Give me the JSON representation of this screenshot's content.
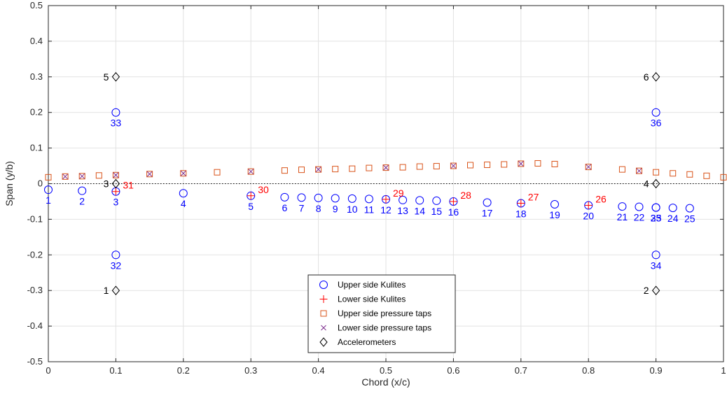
{
  "chart_data": {
    "type": "scatter",
    "xlabel": "Chord (x/c)",
    "ylabel": "Span (y/b)",
    "xlim": [
      0,
      1
    ],
    "ylim": [
      -0.5,
      0.5
    ],
    "xticks": [
      0,
      0.1,
      0.2,
      0.3,
      0.4,
      0.5,
      0.6,
      0.7,
      0.8,
      0.9,
      1
    ],
    "xtick_labels": [
      "0",
      "0.1",
      "0.2",
      "0.3",
      "0.4",
      "0.5",
      "0.6",
      "0.7",
      "0.8",
      "0.9",
      "1"
    ],
    "yticks": [
      -0.5,
      -0.4,
      -0.3,
      -0.2,
      -0.1,
      0,
      0.1,
      0.2,
      0.3,
      0.4,
      0.5
    ],
    "ytick_labels": [
      "-0.5",
      "-0.4",
      "-0.3",
      "-0.2",
      "-0.1",
      "0",
      "0.1",
      "0.2",
      "0.3",
      "0.4",
      "0.5"
    ],
    "grid": true,
    "zero_line": true,
    "legend_position": "bottom-center",
    "series": [
      {
        "name": "Upper side Kulites",
        "marker": "circle",
        "color": "#0000ff",
        "label_color": "#0000ff",
        "points": [
          {
            "x": 0.0,
            "y": -0.017,
            "label": "1"
          },
          {
            "x": 0.05,
            "y": -0.02,
            "label": "2"
          },
          {
            "x": 0.1,
            "y": -0.022,
            "label": "3"
          },
          {
            "x": 0.2,
            "y": -0.027,
            "label": "4"
          },
          {
            "x": 0.3,
            "y": -0.034,
            "label": "5"
          },
          {
            "x": 0.35,
            "y": -0.038,
            "label": "6"
          },
          {
            "x": 0.375,
            "y": -0.039,
            "label": "7"
          },
          {
            "x": 0.4,
            "y": -0.04,
            "label": "8"
          },
          {
            "x": 0.425,
            "y": -0.041,
            "label": "9"
          },
          {
            "x": 0.45,
            "y": -0.042,
            "label": "10"
          },
          {
            "x": 0.475,
            "y": -0.043,
            "label": "11"
          },
          {
            "x": 0.5,
            "y": -0.044,
            "label": "12"
          },
          {
            "x": 0.525,
            "y": -0.046,
            "label": "13"
          },
          {
            "x": 0.55,
            "y": -0.047,
            "label": "14"
          },
          {
            "x": 0.575,
            "y": -0.048,
            "label": "15"
          },
          {
            "x": 0.6,
            "y": -0.05,
            "label": "16"
          },
          {
            "x": 0.65,
            "y": -0.053,
            "label": "17"
          },
          {
            "x": 0.7,
            "y": -0.055,
            "label": "18"
          },
          {
            "x": 0.75,
            "y": -0.058,
            "label": "19"
          },
          {
            "x": 0.8,
            "y": -0.061,
            "label": "20"
          },
          {
            "x": 0.85,
            "y": -0.064,
            "label": "21"
          },
          {
            "x": 0.875,
            "y": -0.065,
            "label": "22"
          },
          {
            "x": 0.9,
            "y": -0.067,
            "label": "23"
          },
          {
            "x": 0.925,
            "y": -0.068,
            "label": "24"
          },
          {
            "x": 0.95,
            "y": -0.069,
            "label": "25"
          },
          {
            "x": 0.1,
            "y": -0.2,
            "label": "32"
          },
          {
            "x": 0.1,
            "y": 0.2,
            "label": "33"
          },
          {
            "x": 0.9,
            "y": -0.2,
            "label": "34"
          },
          {
            "x": 0.9,
            "y": -0.067,
            "label": "35"
          },
          {
            "x": 0.9,
            "y": 0.2,
            "label": "36"
          }
        ]
      },
      {
        "name": "Lower side Kulites",
        "marker": "plus",
        "color": "#ff0000",
        "label_color": "#ff0000",
        "points": [
          {
            "x": 0.8,
            "y": -0.061,
            "label": "26"
          },
          {
            "x": 0.7,
            "y": -0.055,
            "label": "27"
          },
          {
            "x": 0.6,
            "y": -0.05,
            "label": "28"
          },
          {
            "x": 0.5,
            "y": -0.044,
            "label": "29"
          },
          {
            "x": 0.3,
            "y": -0.034,
            "label": "30"
          },
          {
            "x": 0.1,
            "y": -0.022,
            "label": "31"
          }
        ]
      },
      {
        "name": "Upper side pressure taps",
        "marker": "square",
        "color": "#d95319",
        "points": [
          {
            "x": 0.0,
            "y": 0.018
          },
          {
            "x": 0.025,
            "y": 0.02
          },
          {
            "x": 0.05,
            "y": 0.021
          },
          {
            "x": 0.075,
            "y": 0.023
          },
          {
            "x": 0.1,
            "y": 0.024
          },
          {
            "x": 0.15,
            "y": 0.027
          },
          {
            "x": 0.2,
            "y": 0.029
          },
          {
            "x": 0.25,
            "y": 0.032
          },
          {
            "x": 0.3,
            "y": 0.034
          },
          {
            "x": 0.35,
            "y": 0.037
          },
          {
            "x": 0.375,
            "y": 0.039
          },
          {
            "x": 0.4,
            "y": 0.04
          },
          {
            "x": 0.425,
            "y": 0.041
          },
          {
            "x": 0.45,
            "y": 0.042
          },
          {
            "x": 0.475,
            "y": 0.044
          },
          {
            "x": 0.5,
            "y": 0.045
          },
          {
            "x": 0.525,
            "y": 0.046
          },
          {
            "x": 0.55,
            "y": 0.048
          },
          {
            "x": 0.575,
            "y": 0.049
          },
          {
            "x": 0.6,
            "y": 0.05
          },
          {
            "x": 0.625,
            "y": 0.052
          },
          {
            "x": 0.65,
            "y": 0.053
          },
          {
            "x": 0.675,
            "y": 0.054
          },
          {
            "x": 0.7,
            "y": 0.056
          },
          {
            "x": 0.725,
            "y": 0.057
          },
          {
            "x": 0.75,
            "y": 0.055
          },
          {
            "x": 0.8,
            "y": 0.047
          },
          {
            "x": 0.85,
            "y": 0.04
          },
          {
            "x": 0.875,
            "y": 0.036
          },
          {
            "x": 0.9,
            "y": 0.032
          },
          {
            "x": 0.925,
            "y": 0.029
          },
          {
            "x": 0.95,
            "y": 0.026
          },
          {
            "x": 0.975,
            "y": 0.022
          },
          {
            "x": 1.0,
            "y": 0.018
          }
        ]
      },
      {
        "name": "Lower side pressure taps",
        "marker": "x",
        "color": "#7e2f8e",
        "points": [
          {
            "x": 0.025,
            "y": 0.02
          },
          {
            "x": 0.05,
            "y": 0.021
          },
          {
            "x": 0.1,
            "y": 0.024
          },
          {
            "x": 0.15,
            "y": 0.027
          },
          {
            "x": 0.2,
            "y": 0.029
          },
          {
            "x": 0.3,
            "y": 0.034
          },
          {
            "x": 0.4,
            "y": 0.04
          },
          {
            "x": 0.5,
            "y": 0.045
          },
          {
            "x": 0.6,
            "y": 0.05
          },
          {
            "x": 0.7,
            "y": 0.056
          },
          {
            "x": 0.8,
            "y": 0.047
          },
          {
            "x": 0.875,
            "y": 0.036
          }
        ]
      },
      {
        "name": "Accelerometers",
        "marker": "diamond",
        "color": "#000000",
        "label_color": "#000000",
        "points": [
          {
            "x": 0.1,
            "y": -0.3,
            "label": "1"
          },
          {
            "x": 0.9,
            "y": -0.3,
            "label": "2"
          },
          {
            "x": 0.1,
            "y": 0.0,
            "label": "3"
          },
          {
            "x": 0.9,
            "y": 0.0,
            "label": "4"
          },
          {
            "x": 0.1,
            "y": 0.3,
            "label": "5"
          },
          {
            "x": 0.9,
            "y": 0.3,
            "label": "6"
          }
        ]
      }
    ]
  }
}
